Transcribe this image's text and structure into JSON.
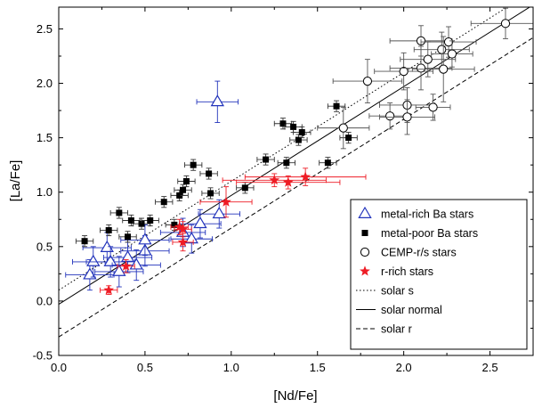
{
  "chart_data": {
    "type": "scatter",
    "title": "",
    "xlabel": "[Nd/Fe]",
    "ylabel": "[La/Fe]",
    "xlim": [
      0.0,
      2.75
    ],
    "ylim": [
      -0.5,
      2.7
    ],
    "x_ticks": [
      0.0,
      0.5,
      1.0,
      1.5,
      2.0,
      2.5
    ],
    "x_tick_labels": [
      "0.0",
      "0.5",
      "1.0",
      "1.5",
      "2.0",
      "2.5"
    ],
    "y_ticks": [
      -0.5,
      0.0,
      0.5,
      1.0,
      1.5,
      2.0,
      2.5
    ],
    "y_tick_labels": [
      "-0.5",
      "0.0",
      "0.5",
      "1.0",
      "1.5",
      "2.0",
      "2.5"
    ],
    "legend_position": "bottom-right",
    "series": [
      {
        "name": "metal-rich Ba stars",
        "marker": "open-triangle",
        "color": "#2233bb",
        "points": [
          {
            "x": 0.92,
            "y": 1.83,
            "xerr": 0.12,
            "yerr": 0.19
          },
          {
            "x": 0.18,
            "y": 0.24,
            "xerr": 0.14,
            "yerr": 0.14
          },
          {
            "x": 0.2,
            "y": 0.36,
            "xerr": 0.12,
            "yerr": 0.14
          },
          {
            "x": 0.28,
            "y": 0.49,
            "xerr": 0.14,
            "yerr": 0.14
          },
          {
            "x": 0.3,
            "y": 0.36,
            "xerr": 0.14,
            "yerr": 0.14
          },
          {
            "x": 0.35,
            "y": 0.27,
            "xerr": 0.14,
            "yerr": 0.14
          },
          {
            "x": 0.4,
            "y": 0.4,
            "xerr": 0.14,
            "yerr": 0.14
          },
          {
            "x": 0.45,
            "y": 0.33,
            "xerr": 0.14,
            "yerr": 0.14
          },
          {
            "x": 0.5,
            "y": 0.46,
            "xerr": 0.14,
            "yerr": 0.14
          },
          {
            "x": 0.5,
            "y": 0.56,
            "xerr": 0.14,
            "yerr": 0.14
          },
          {
            "x": 0.72,
            "y": 0.63,
            "xerr": 0.13,
            "yerr": 0.13
          },
          {
            "x": 0.77,
            "y": 0.57,
            "xerr": 0.12,
            "yerr": 0.13
          },
          {
            "x": 0.82,
            "y": 0.71,
            "xerr": 0.12,
            "yerr": 0.13
          },
          {
            "x": 0.93,
            "y": 0.8,
            "xerr": 0.12,
            "yerr": 0.13
          }
        ]
      },
      {
        "name": "metal-poor Ba stars",
        "marker": "filled-square",
        "color": "#000000",
        "points": [
          {
            "x": 0.15,
            "y": 0.55,
            "xerr": 0.05,
            "yerr": 0.05
          },
          {
            "x": 0.29,
            "y": 0.65,
            "xerr": 0.05,
            "yerr": 0.05
          },
          {
            "x": 0.35,
            "y": 0.81,
            "xerr": 0.05,
            "yerr": 0.05
          },
          {
            "x": 0.4,
            "y": 0.59,
            "xerr": 0.05,
            "yerr": 0.05
          },
          {
            "x": 0.42,
            "y": 0.74,
            "xerr": 0.05,
            "yerr": 0.05
          },
          {
            "x": 0.48,
            "y": 0.71,
            "xerr": 0.05,
            "yerr": 0.05
          },
          {
            "x": 0.53,
            "y": 0.74,
            "xerr": 0.05,
            "yerr": 0.05
          },
          {
            "x": 0.61,
            "y": 0.91,
            "xerr": 0.05,
            "yerr": 0.05
          },
          {
            "x": 0.67,
            "y": 0.7,
            "xerr": 0.05,
            "yerr": 0.05
          },
          {
            "x": 0.7,
            "y": 0.97,
            "xerr": 0.05,
            "yerr": 0.05
          },
          {
            "x": 0.72,
            "y": 1.02,
            "xerr": 0.05,
            "yerr": 0.05
          },
          {
            "x": 0.74,
            "y": 1.1,
            "xerr": 0.05,
            "yerr": 0.05
          },
          {
            "x": 0.78,
            "y": 1.25,
            "xerr": 0.05,
            "yerr": 0.05
          },
          {
            "x": 0.87,
            "y": 1.17,
            "xerr": 0.05,
            "yerr": 0.05
          },
          {
            "x": 0.88,
            "y": 0.99,
            "xerr": 0.05,
            "yerr": 0.05
          },
          {
            "x": 1.08,
            "y": 1.04,
            "xerr": 0.05,
            "yerr": 0.05
          },
          {
            "x": 1.2,
            "y": 1.3,
            "xerr": 0.05,
            "yerr": 0.05
          },
          {
            "x": 1.3,
            "y": 1.63,
            "xerr": 0.05,
            "yerr": 0.05
          },
          {
            "x": 1.32,
            "y": 1.27,
            "xerr": 0.05,
            "yerr": 0.05
          },
          {
            "x": 1.36,
            "y": 1.6,
            "xerr": 0.05,
            "yerr": 0.05
          },
          {
            "x": 1.39,
            "y": 1.48,
            "xerr": 0.05,
            "yerr": 0.05
          },
          {
            "x": 1.41,
            "y": 1.55,
            "xerr": 0.05,
            "yerr": 0.05
          },
          {
            "x": 1.56,
            "y": 1.27,
            "xerr": 0.05,
            "yerr": 0.05
          },
          {
            "x": 1.61,
            "y": 1.79,
            "xerr": 0.05,
            "yerr": 0.05
          },
          {
            "x": 1.68,
            "y": 1.5,
            "xerr": 0.05,
            "yerr": 0.05
          }
        ]
      },
      {
        "name": "CEMP-r/s stars",
        "marker": "open-circle",
        "color": "#000000",
        "points": [
          {
            "x": 1.65,
            "y": 1.59,
            "xerr": 0.15,
            "yerr": 0.19
          },
          {
            "x": 1.79,
            "y": 2.02,
            "xerr": 0.2,
            "yerr": 0.2
          },
          {
            "x": 1.92,
            "y": 1.7,
            "xerr": 0.12,
            "yerr": 0.12
          },
          {
            "x": 2.0,
            "y": 2.11,
            "xerr": 0.17,
            "yerr": 0.17
          },
          {
            "x": 2.02,
            "y": 1.8,
            "xerr": 0.16,
            "yerr": 0.16
          },
          {
            "x": 2.02,
            "y": 1.69,
            "xerr": 0.16,
            "yerr": 0.16
          },
          {
            "x": 2.1,
            "y": 2.39,
            "xerr": 0.18,
            "yerr": 0.14
          },
          {
            "x": 2.1,
            "y": 2.14,
            "xerr": 0.18,
            "yerr": 0.2
          },
          {
            "x": 2.14,
            "y": 2.22,
            "xerr": 0.16,
            "yerr": 0.16
          },
          {
            "x": 2.17,
            "y": 1.78,
            "xerr": 0.1,
            "yerr": 0.12
          },
          {
            "x": 2.22,
            "y": 2.31,
            "xerr": 0.16,
            "yerr": 0.16
          },
          {
            "x": 2.23,
            "y": 2.13,
            "xerr": 0.18,
            "yerr": 0.3
          },
          {
            "x": 2.26,
            "y": 2.38,
            "xerr": 0.16,
            "yerr": 0.14
          },
          {
            "x": 2.28,
            "y": 2.27,
            "xerr": 0.12,
            "yerr": 0.12
          },
          {
            "x": 2.59,
            "y": 2.55,
            "xerr": 0.2,
            "yerr": 0.14
          }
        ]
      },
      {
        "name": "r-rich stars",
        "marker": "filled-star",
        "color": "#ee1c25",
        "points": [
          {
            "x": 0.29,
            "y": 0.1,
            "xerr": 0.05,
            "yerr": 0.04
          },
          {
            "x": 0.39,
            "y": 0.32,
            "xerr": 0.05,
            "yerr": 0.06
          },
          {
            "x": 0.7,
            "y": 0.68,
            "xerr": 0.05,
            "yerr": 0.07
          },
          {
            "x": 0.72,
            "y": 0.66,
            "xerr": 0.05,
            "yerr": 0.07
          },
          {
            "x": 0.72,
            "y": 0.54,
            "xerr": 0.06,
            "yerr": 0.08
          },
          {
            "x": 0.97,
            "y": 0.91,
            "xerr": 0.15,
            "yerr": 0.14
          },
          {
            "x": 1.25,
            "y": 1.11,
            "xerr": 0.3,
            "yerr": 0.06
          },
          {
            "x": 1.33,
            "y": 1.09,
            "xerr": 0.3,
            "yerr": 0.06
          },
          {
            "x": 1.43,
            "y": 1.14,
            "xerr": 0.35,
            "yerr": 0.08
          }
        ]
      }
    ],
    "lines": [
      {
        "name": "solar s",
        "style": "dotted",
        "slope": 1.0,
        "intercept": 0.1
      },
      {
        "name": "solar normal",
        "style": "solid",
        "slope": 1.0,
        "intercept": -0.03
      },
      {
        "name": "solar r",
        "style": "dashed",
        "slope": 1.0,
        "intercept": -0.33
      }
    ]
  }
}
